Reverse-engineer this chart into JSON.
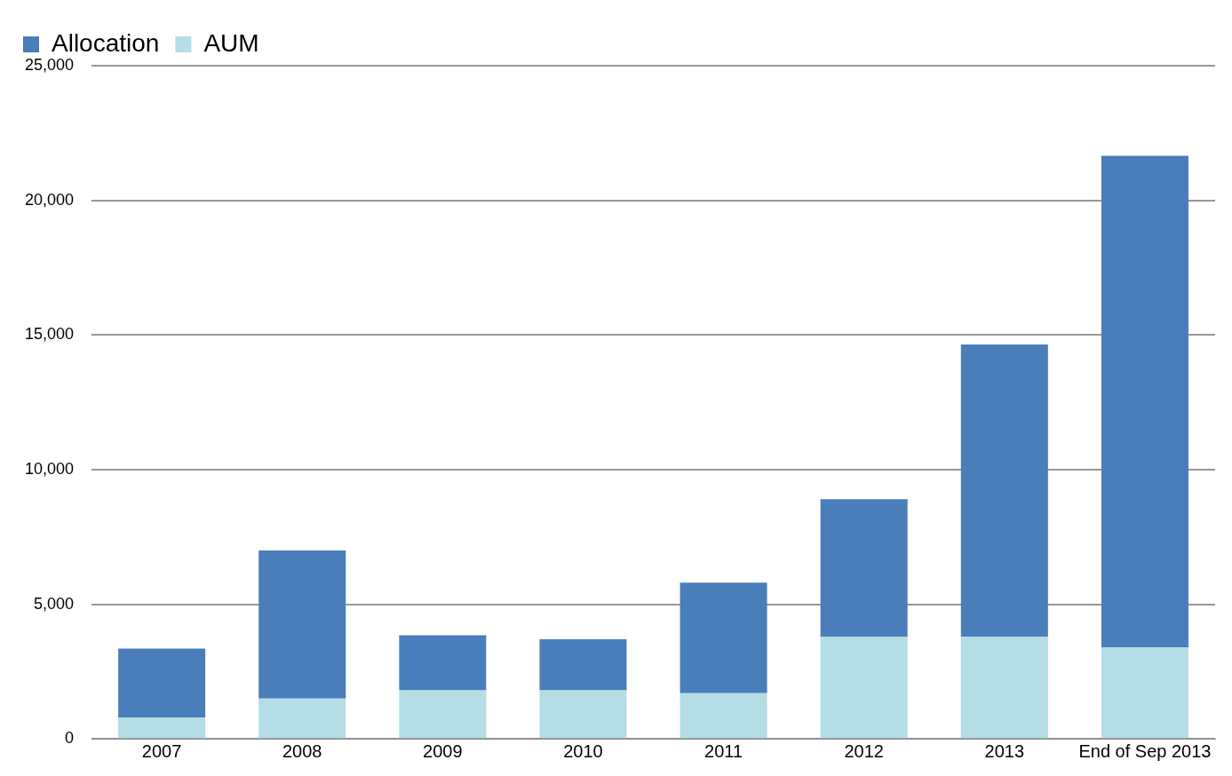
{
  "chart_data": {
    "type": "bar",
    "stacked": true,
    "categories": [
      "2007",
      "2008",
      "2009",
      "2010",
      "2011",
      "2012",
      "2013",
      "End of Sep 2013"
    ],
    "series": [
      {
        "name": "AUM",
        "color": "#b4dde6",
        "values": [
          800,
          1500,
          1800,
          1800,
          1700,
          3800,
          3800,
          3400
        ]
      },
      {
        "name": "Allocation",
        "color": "#4a7ebb",
        "values": [
          2550,
          5500,
          2050,
          1900,
          4100,
          5100,
          10850,
          18250
        ]
      }
    ],
    "ylim": [
      0,
      25000
    ],
    "yticks": [
      {
        "value": 0,
        "label": "0"
      },
      {
        "value": 5000,
        "label": "5,000"
      },
      {
        "value": 10000,
        "label": "10,000"
      },
      {
        "value": 15000,
        "label": "15,000"
      },
      {
        "value": 20000,
        "label": "20,000"
      },
      {
        "value": 25000,
        "label": "25,000"
      }
    ],
    "grid": "y",
    "legend": "top left"
  }
}
